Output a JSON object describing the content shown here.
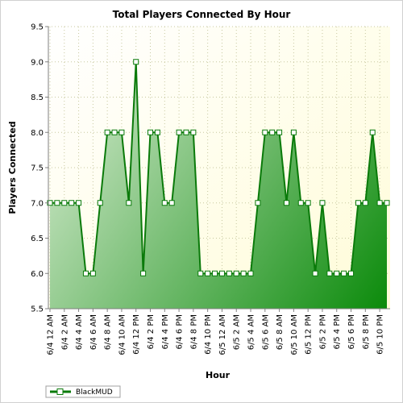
{
  "chart_data": {
    "type": "area",
    "title": "Total Players Connected By Hour",
    "xlabel": "Hour",
    "ylabel": "Players Connected",
    "ylim": [
      5.5,
      9.5
    ],
    "yticks": [
      "5.5",
      "6.0",
      "6.5",
      "7.0",
      "7.5",
      "8.0",
      "8.5",
      "9.0",
      "9.5"
    ],
    "grid": true,
    "legend_position": "bottom-left",
    "x_tick_labels": [
      "6/4 12 AM",
      "6/4 2 AM",
      "6/4 4 AM",
      "6/4 6 AM",
      "6/4 8 AM",
      "6/4 10 AM",
      "6/4 12 PM",
      "6/4 2 PM",
      "6/4 4 PM",
      "6/4 6 PM",
      "6/4 8 PM",
      "6/4 10 PM",
      "6/5 12 AM",
      "6/5 2 AM",
      "6/5 4 AM",
      "6/5 6 AM",
      "6/5 8 AM",
      "6/5 10 AM",
      "6/5 12 PM",
      "6/5 2 PM",
      "6/5 4 PM",
      "6/5 6 PM",
      "6/5 8 PM",
      "6/5 10 PM"
    ],
    "x": [
      "6/4 12 AM",
      "6/4 1 AM",
      "6/4 2 AM",
      "6/4 3 AM",
      "6/4 4 AM",
      "6/4 5 AM",
      "6/4 6 AM",
      "6/4 7 AM",
      "6/4 8 AM",
      "6/4 9 AM",
      "6/4 10 AM",
      "6/4 11 AM",
      "6/4 12 PM",
      "6/4 1 PM",
      "6/4 2 PM",
      "6/4 3 PM",
      "6/4 4 PM",
      "6/4 5 PM",
      "6/4 6 PM",
      "6/4 7 PM",
      "6/4 8 PM",
      "6/4 9 PM",
      "6/4 10 PM",
      "6/4 11 PM",
      "6/5 12 AM",
      "6/5 1 AM",
      "6/5 2 AM",
      "6/5 3 AM",
      "6/5 4 AM",
      "6/5 5 AM",
      "6/5 6 AM",
      "6/5 7 AM",
      "6/5 8 AM",
      "6/5 9 AM",
      "6/5 10 AM",
      "6/5 11 AM",
      "6/5 12 PM",
      "6/5 1 PM",
      "6/5 2 PM",
      "6/5 3 PM",
      "6/5 4 PM",
      "6/5 5 PM",
      "6/5 6 PM",
      "6/5 7 PM",
      "6/5 8 PM",
      "6/5 9 PM",
      "6/5 10 PM",
      "6/5 11 PM"
    ],
    "series": [
      {
        "name": "BlackMUD",
        "values": [
          7,
          7,
          7,
          7,
          7,
          6,
          6,
          7,
          8,
          8,
          8,
          7,
          9,
          6,
          8,
          8,
          7,
          7,
          8,
          8,
          8,
          6,
          6,
          6,
          6,
          6,
          6,
          6,
          6,
          7,
          8,
          8,
          8,
          7,
          8,
          7,
          7,
          6,
          7,
          6,
          6,
          6,
          6,
          7,
          7,
          8,
          7,
          7
        ]
      }
    ],
    "colors": {
      "line": "#0a7a0a",
      "fill_light": "#d8ecd2",
      "fill_dark": "#0a8a0a",
      "plot_bg": "#fffde0",
      "grid": "#c8c8a0"
    }
  }
}
